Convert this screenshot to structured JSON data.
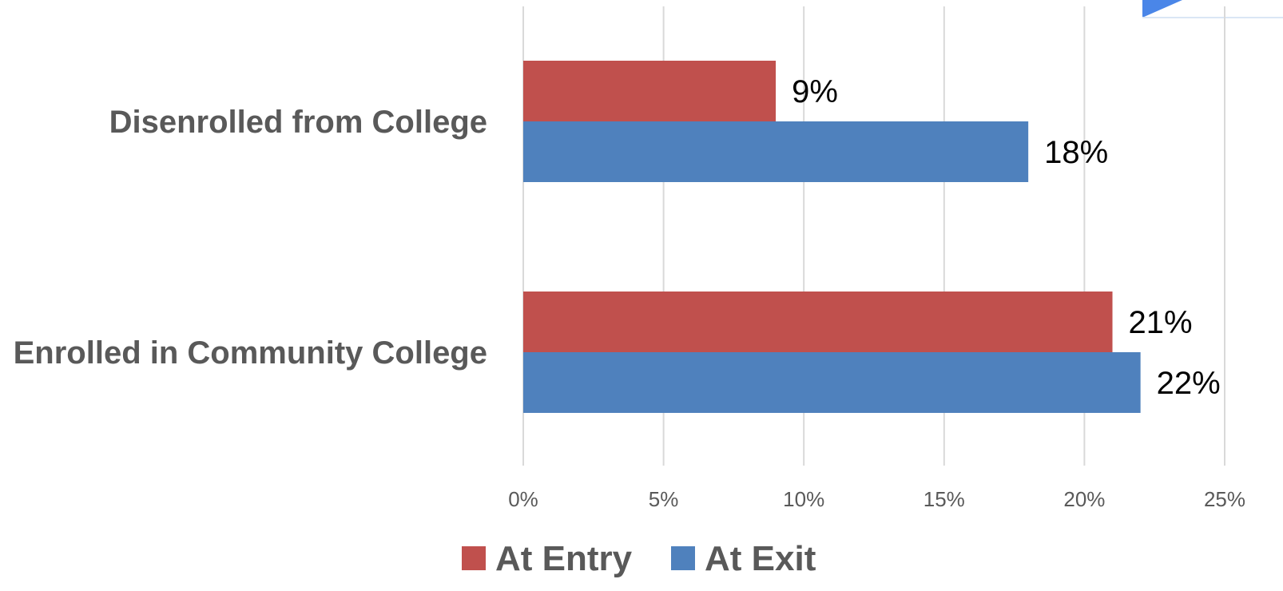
{
  "chart_data": {
    "type": "bar",
    "orientation": "horizontal",
    "categories": [
      "Disenrolled from College",
      "Enrolled in Community College"
    ],
    "series": [
      {
        "name": "At Entry",
        "values": [
          9,
          21
        ],
        "color": "#c0504d"
      },
      {
        "name": "At Exit",
        "values": [
          18,
          22
        ],
        "color": "#4f81bd"
      }
    ],
    "data_labels": [
      [
        "9%",
        "21%"
      ],
      [
        "18%",
        "22%"
      ]
    ],
    "xlim": [
      0,
      25
    ],
    "xticks": [
      0,
      5,
      10,
      15,
      20,
      25
    ],
    "xtick_labels": [
      "0%",
      "5%",
      "10%",
      "15%",
      "20%",
      "25%"
    ],
    "grid": true,
    "legend_position": "bottom",
    "corner_accent_color": "#4a86e8"
  }
}
